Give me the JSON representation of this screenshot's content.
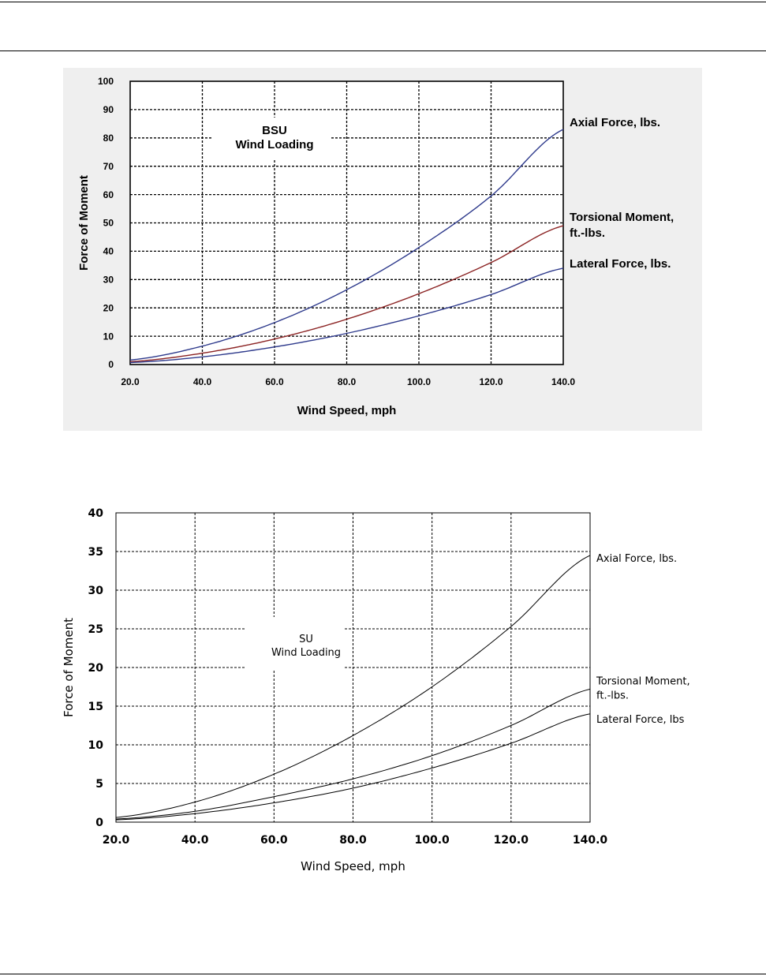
{
  "chart_data": [
    {
      "type": "line",
      "title": "BSU\nWind Loading",
      "xlabel": "Wind Speed, mph",
      "ylabel": "Force of Moment",
      "xlim": [
        20,
        140
      ],
      "ylim": [
        0,
        100
      ],
      "x_ticks": [
        "20.0",
        "40.0",
        "60.0",
        "80.0",
        "100.0",
        "120.0",
        "140.0"
      ],
      "y_ticks": [
        "0",
        "10",
        "20",
        "30",
        "40",
        "50",
        "60",
        "70",
        "80",
        "90",
        "100"
      ],
      "grid": true,
      "legend": "right, labels at line ends",
      "x": [
        20,
        40,
        60,
        80,
        100,
        120,
        140
      ],
      "series": [
        {
          "name": "Axial Force, lbs.",
          "color": "#2e3a8c",
          "values": [
            1.6,
            6.5,
            14.8,
            26.4,
            41.3,
            59.5,
            83.0
          ]
        },
        {
          "name": "Torsional Moment, ft.-lbs.",
          "color": "#8b2323",
          "values": [
            1.0,
            4.0,
            9.0,
            16.0,
            25.0,
            36.0,
            49.0
          ]
        },
        {
          "name": "Lateral Force, lbs.",
          "color": "#2e3a8c",
          "values": [
            0.7,
            2.7,
            6.2,
            11.0,
            17.2,
            24.7,
            34.0
          ]
        }
      ],
      "series_labels": [
        [
          "Axial Force, lbs."
        ],
        [
          "Torsional Moment,",
          "ft.-lbs."
        ],
        [
          "Lateral Force, lbs."
        ]
      ]
    },
    {
      "type": "line",
      "title": "SU\nWind Loading",
      "xlabel": "Wind Speed, mph",
      "ylabel": "Force of Moment",
      "xlim": [
        20,
        140
      ],
      "ylim": [
        0,
        40
      ],
      "x_ticks": [
        "20.0",
        "40.0",
        "60.0",
        "80.0",
        "100.0",
        "120.0",
        "140.0"
      ],
      "y_ticks": [
        "0",
        "5",
        "10",
        "15",
        "20",
        "25",
        "30",
        "35",
        "40"
      ],
      "grid": true,
      "legend": "right, labels at line ends",
      "x": [
        20,
        40,
        60,
        80,
        100,
        120,
        140
      ],
      "series": [
        {
          "name": "Axial Force, lbs.",
          "color": "#000000",
          "values": [
            0.6,
            2.6,
            6.2,
            11.2,
            17.5,
            25.3,
            34.5
          ]
        },
        {
          "name": "Torsional Moment, ft.-lbs.",
          "color": "#000000",
          "values": [
            0.4,
            1.4,
            3.3,
            5.6,
            8.6,
            12.5,
            17.2
          ]
        },
        {
          "name": "Lateral Force, lbs",
          "color": "#000000",
          "values": [
            0.3,
            1.1,
            2.5,
            4.4,
            7.0,
            10.2,
            14.0
          ]
        }
      ],
      "series_labels": [
        [
          "Axial Force, lbs."
        ],
        [
          "Torsional Moment,",
          "ft.-lbs."
        ],
        [
          "Lateral Force, lbs"
        ]
      ]
    }
  ]
}
